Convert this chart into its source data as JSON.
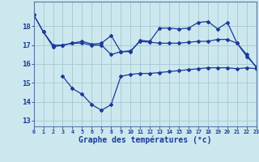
{
  "title": "Graphe des températures (°c)",
  "background_color": "#cce8ee",
  "grid_color": "#aaccd4",
  "line_color": "#1a3a9a",
  "x_labels": [
    "0",
    "1",
    "2",
    "3",
    "4",
    "5",
    "6",
    "7",
    "8",
    "9",
    "10",
    "11",
    "12",
    "13",
    "14",
    "15",
    "16",
    "17",
    "18",
    "19",
    "20",
    "21",
    "22",
    "23"
  ],
  "ylim": [
    12.7,
    19.3
  ],
  "xlim": [
    0,
    23
  ],
  "yticks": [
    13,
    14,
    15,
    16,
    17,
    18
  ],
  "series1_x": [
    0,
    1,
    2,
    3,
    4,
    5,
    6,
    7,
    8,
    9,
    10,
    11,
    12,
    13,
    14,
    15,
    16,
    17,
    18,
    19,
    20,
    21,
    22,
    23
  ],
  "series1_y": [
    18.6,
    17.7,
    17.0,
    17.0,
    17.1,
    17.1,
    17.0,
    17.0,
    16.5,
    16.65,
    16.7,
    17.2,
    17.15,
    17.1,
    17.1,
    17.1,
    17.15,
    17.2,
    17.2,
    17.3,
    17.3,
    17.1,
    16.5,
    15.8
  ],
  "series2_x": [
    0,
    1,
    2,
    3,
    4,
    5,
    6,
    7,
    8,
    9,
    10,
    11,
    12,
    13,
    14,
    15,
    16,
    17,
    18,
    19,
    20,
    21,
    22,
    23
  ],
  "series2_y": [
    18.6,
    17.7,
    16.9,
    17.0,
    17.1,
    17.2,
    17.05,
    17.1,
    17.5,
    16.65,
    16.65,
    17.25,
    17.2,
    17.9,
    17.9,
    17.85,
    17.9,
    18.2,
    18.25,
    17.85,
    18.2,
    17.1,
    16.4,
    15.85
  ],
  "series3_x": [
    3,
    4,
    5,
    6,
    7,
    8,
    9,
    10,
    11,
    12,
    13,
    14,
    15,
    16,
    17,
    18,
    19,
    20,
    21,
    22,
    23
  ],
  "series3_y": [
    15.35,
    14.7,
    14.4,
    13.85,
    13.55,
    13.85,
    15.35,
    15.45,
    15.5,
    15.5,
    15.55,
    15.6,
    15.65,
    15.7,
    15.75,
    15.8,
    15.8,
    15.8,
    15.75,
    15.8,
    15.75
  ]
}
